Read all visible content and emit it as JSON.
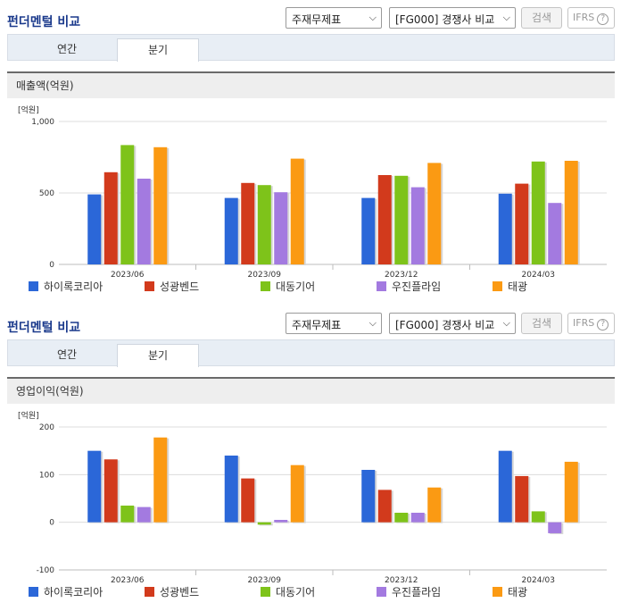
{
  "colors": {
    "hairocorea": "#2b67d8",
    "sungkwang": "#d23a1c",
    "daedong": "#7ec31a",
    "woojin": "#a37ae0",
    "taekwang": "#fb9a13"
  },
  "panels": [
    {
      "title": "펀더멘털 비교",
      "select1": "주재무제표",
      "select2": "[FG000] 경쟁사 비교",
      "search_label": "검색",
      "ifrs_label": "IFRS",
      "help_glyph": "?",
      "tabs": [
        "연간",
        "분기"
      ],
      "active_tab": "분기",
      "section_title": "매출액(억원)",
      "chart_data": {
        "type": "bar",
        "unit_label": "[억원]",
        "categories": [
          "2023/06",
          "2023/09",
          "2023/12",
          "2024/03"
        ],
        "ylim": [
          0,
          1000
        ],
        "yticks": [
          0,
          500,
          1000
        ],
        "ytick_labels": [
          "0",
          "500",
          "1,000"
        ],
        "series": [
          {
            "name": "하이록코리아",
            "color": "#2b67d8",
            "values": [
              490,
              465,
              465,
              495
            ]
          },
          {
            "name": "성광벤드",
            "color": "#d23a1c",
            "values": [
              645,
              570,
              625,
              565
            ]
          },
          {
            "name": "대동기어",
            "color": "#7ec31a",
            "values": [
              835,
              555,
              620,
              720
            ]
          },
          {
            "name": "우진플라임",
            "color": "#a37ae0",
            "values": [
              600,
              505,
              540,
              430
            ]
          },
          {
            "name": "태광",
            "color": "#fb9a13",
            "values": [
              820,
              740,
              710,
              725
            ]
          }
        ]
      }
    },
    {
      "title": "펀더멘털 비교",
      "select1": "주재무제표",
      "select2": "[FG000] 경쟁사 비교",
      "search_label": "검색",
      "ifrs_label": "IFRS",
      "help_glyph": "?",
      "tabs": [
        "연간",
        "분기"
      ],
      "active_tab": "분기",
      "section_title": "영업이익(억원)",
      "chart_data": {
        "type": "bar",
        "unit_label": "[억원]",
        "categories": [
          "2023/06",
          "2023/09",
          "2023/12",
          "2024/03"
        ],
        "ylim": [
          -100,
          200
        ],
        "yticks": [
          -100,
          0,
          100,
          200
        ],
        "ytick_labels": [
          "-100",
          "0",
          "100",
          "200"
        ],
        "series": [
          {
            "name": "하이록코리아",
            "color": "#2b67d8",
            "values": [
              150,
              140,
              110,
              150
            ]
          },
          {
            "name": "성광벤드",
            "color": "#d23a1c",
            "values": [
              132,
              92,
              68,
              97
            ]
          },
          {
            "name": "대동기어",
            "color": "#7ec31a",
            "values": [
              35,
              -5,
              20,
              23
            ]
          },
          {
            "name": "우진플라임",
            "color": "#a37ae0",
            "values": [
              32,
              5,
              20,
              -23
            ]
          },
          {
            "name": "태광",
            "color": "#fb9a13",
            "values": [
              178,
              120,
              73,
              127
            ]
          }
        ]
      }
    }
  ]
}
